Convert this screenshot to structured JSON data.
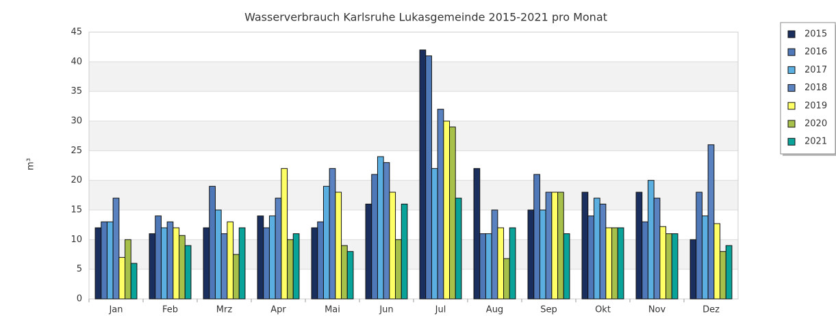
{
  "chart_data": {
    "type": "bar",
    "title": "Wasserverbrauch Karlsruhe Lukasgemeinde 2015-2021 pro Monat",
    "y_label": "m³",
    "categories": [
      "Jan",
      "Feb",
      "Mrz",
      "Apr",
      "Mai",
      "Jun",
      "Jul",
      "Aug",
      "Sep",
      "Okt",
      "Nov",
      "Dez"
    ],
    "series": [
      {
        "name": "2015",
        "color": "#1b2f5e",
        "values": [
          12,
          11,
          12,
          14,
          12,
          16,
          42,
          22,
          15,
          18,
          18,
          10
        ]
      },
      {
        "name": "2016",
        "color": "#4f78b8",
        "values": [
          13,
          14,
          19,
          12,
          13,
          21,
          41,
          11,
          21,
          14,
          13,
          18
        ]
      },
      {
        "name": "2017",
        "color": "#5aaee0",
        "values": [
          13,
          12,
          15,
          14,
          19,
          24,
          22,
          11,
          15,
          17,
          20,
          14
        ]
      },
      {
        "name": "2018",
        "color": "#5b82c0",
        "values": [
          17,
          13,
          11,
          17,
          22,
          23,
          32,
          15,
          18,
          16,
          17,
          26
        ]
      },
      {
        "name": "2019",
        "color": "#ffff66",
        "values": [
          7,
          12,
          13,
          22,
          18,
          18,
          30,
          12,
          18,
          12,
          12.2,
          12.7
        ]
      },
      {
        "name": "2020",
        "color": "#a6c04a",
        "values": [
          10,
          10.7,
          7.5,
          10,
          9,
          10,
          29,
          6.8,
          18,
          12,
          11,
          8
        ]
      },
      {
        "name": "2021",
        "color": "#0aa39a",
        "values": [
          6,
          9,
          12,
          11,
          8,
          16,
          17,
          12,
          11,
          12,
          11,
          9
        ]
      }
    ],
    "ylim": [
      0,
      45
    ],
    "yticks": [
      0,
      5,
      10,
      15,
      20,
      25,
      30,
      35,
      40,
      45
    ],
    "grid": true,
    "legend": "right"
  }
}
